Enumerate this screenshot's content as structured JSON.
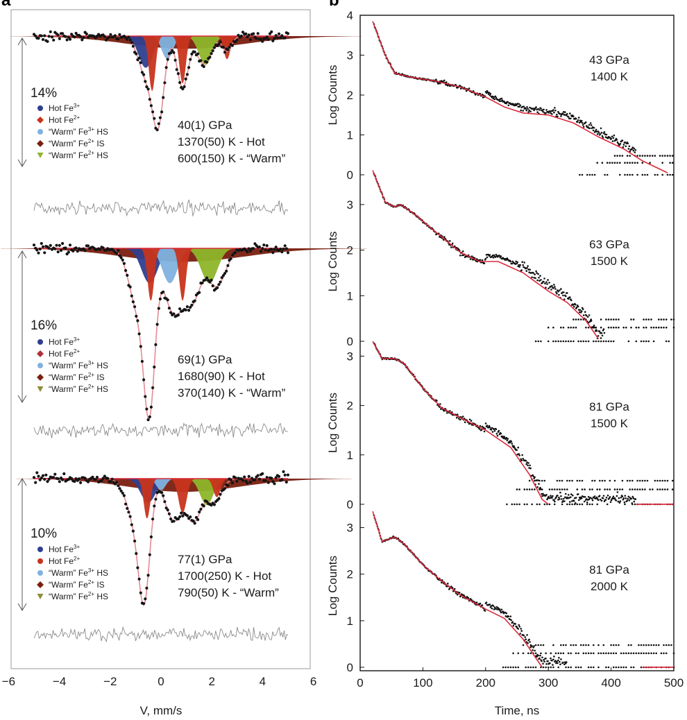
{
  "panel_a_label": "a",
  "panel_b_label": "b",
  "chart_data": [
    {
      "type": "scatter",
      "panel": "a",
      "xlabel": "V, mm/s",
      "xlim": [
        -6,
        6
      ],
      "xticks": [
        "-6",
        "-4",
        "-2",
        "0",
        "2",
        "4",
        "6"
      ],
      "spectra": [
        {
          "absorption_label": "14%",
          "conditions": [
            "40(1) GPa",
            "1370(50) K - Hot",
            "600(150) K - “Warm”"
          ],
          "legend": [
            {
              "label": "Hot Fe",
              "sup": "3+",
              "suffix": "",
              "color": "#2f3f8f",
              "marker": "circle"
            },
            {
              "label": "Hot Fe",
              "sup": "2+",
              "suffix": "",
              "color": "#c8341c",
              "marker": "diamond"
            },
            {
              "label": "“Warm” Fe",
              "sup": "3+",
              "suffix": " HS",
              "color": "#7fb2df",
              "marker": "circle"
            },
            {
              "label": "“Warm” Fe",
              "sup": "2+",
              "suffix": " IS",
              "color": "#7a1f10",
              "marker": "diamond"
            },
            {
              "label": "“Warm” Fe",
              "sup": "2+",
              "suffix": " HS",
              "color": "#8db52a",
              "marker": "triangle"
            }
          ],
          "components": [
            {
              "color": "#7a1f10",
              "center": 1.0,
              "width": 2.3,
              "depth": 0.22
            },
            {
              "color": "#2f3f8f",
              "center": -0.6,
              "width": 0.28,
              "depth": 0.55
            },
            {
              "color": "#7fb2df",
              "center": 0.25,
              "width": 0.22,
              "depth": 0.4
            },
            {
              "color": "#8db52a",
              "center": 1.75,
              "width": 0.26,
              "depth": 0.5
            },
            {
              "color": "#c8341c",
              "center": -0.35,
              "width": 0.13,
              "depth": 0.95
            },
            {
              "color": "#c8341c",
              "center": 0.85,
              "width": 0.13,
              "depth": 0.82
            },
            {
              "color": "#c8341c",
              "center": 2.6,
              "width": 0.13,
              "depth": 0.4
            }
          ],
          "fit_peaks": [
            {
              "center": -0.55,
              "width": 0.32,
              "depth": 0.32
            },
            {
              "center": -0.1,
              "width": 0.22,
              "depth": 0.6
            },
            {
              "center": 0.85,
              "width": 0.22,
              "depth": 0.4
            },
            {
              "center": 1.7,
              "width": 0.28,
              "depth": 0.22
            },
            {
              "center": 2.6,
              "width": 0.18,
              "depth": 0.12
            }
          ]
        },
        {
          "absorption_label": "16%",
          "conditions": [
            "69(1) GPa",
            "1680(90) K - Hot",
            "370(140) K - “Warm”"
          ],
          "legend": [
            {
              "label": "Hot Fe",
              "sup": "3+",
              "suffix": "",
              "color": "#2f3f8f",
              "marker": "circle"
            },
            {
              "label": "Hot Fe",
              "sup": "2+",
              "suffix": "",
              "color": "#b0303a",
              "marker": "diamond"
            },
            {
              "label": "“Warm” Fe",
              "sup": "3+",
              "suffix": " HS",
              "color": "#7fb2df",
              "marker": "circle"
            },
            {
              "label": "“Warm” Fe",
              "sup": "2+",
              "suffix": " IS",
              "color": "#7a1f10",
              "marker": "diamond"
            },
            {
              "label": "“Warm” Fe",
              "sup": "2+",
              "suffix": " HS",
              "color": "#8a8f3a",
              "marker": "triangle"
            }
          ],
          "components": [
            {
              "color": "#7a1f10",
              "center": 0.9,
              "width": 2.4,
              "depth": 0.2
            },
            {
              "color": "#2f3f8f",
              "center": -0.45,
              "width": 0.32,
              "depth": 0.52
            },
            {
              "color": "#7fb2df",
              "center": 0.35,
              "width": 0.3,
              "depth": 0.52
            },
            {
              "color": "#8db52a",
              "center": 1.9,
              "width": 0.32,
              "depth": 0.52
            },
            {
              "color": "#c8341c",
              "center": -0.4,
              "width": 0.13,
              "depth": 0.78
            },
            {
              "color": "#c8341c",
              "center": 0.85,
              "width": 0.13,
              "depth": 0.78
            }
          ],
          "fit_peaks": [
            {
              "center": -0.9,
              "width": 0.35,
              "depth": 0.4
            },
            {
              "center": -0.45,
              "width": 0.22,
              "depth": 0.95
            },
            {
              "center": 0.45,
              "width": 0.35,
              "depth": 0.4
            },
            {
              "center": 1.2,
              "width": 0.35,
              "depth": 0.35
            },
            {
              "center": 2.2,
              "width": 0.35,
              "depth": 0.25
            }
          ]
        },
        {
          "absorption_label": "10%",
          "conditions": [
            "77(1) GPa",
            "1700(250) K - Hot",
            "790(50) K - “Warm”"
          ],
          "legend": [
            {
              "label": "Hot Fe",
              "sup": "3+",
              "suffix": "",
              "color": "#2f3f8f",
              "marker": "circle"
            },
            {
              "label": "Hot Fe",
              "sup": "2+",
              "suffix": "",
              "color": "#c8341c",
              "marker": "circle"
            },
            {
              "label": "“Warm” Fe",
              "sup": "3+",
              "suffix": " HS",
              "color": "#7fb2df",
              "marker": "circle"
            },
            {
              "label": "“Warm” Fe",
              "sup": "2+",
              "suffix": " IS",
              "color": "#7a1f10",
              "marker": "diamond"
            },
            {
              "label": "“Warm” Fe",
              "sup": "2+",
              "suffix": " HS",
              "color": "#8a8f3a",
              "marker": "triangle"
            }
          ],
          "components": [
            {
              "color": "#7a1f10",
              "center": 0.9,
              "width": 2.2,
              "depth": 0.25
            },
            {
              "color": "#2f3f8f",
              "center": -0.5,
              "width": 0.3,
              "depth": 0.45
            },
            {
              "color": "#7fb2df",
              "center": 0.0,
              "width": 0.18,
              "depth": 0.22
            },
            {
              "color": "#8db52a",
              "center": 1.8,
              "width": 0.26,
              "depth": 0.5
            },
            {
              "color": "#c8341c",
              "center": -0.55,
              "width": 0.13,
              "depth": 0.75
            },
            {
              "color": "#c8341c",
              "center": 0.85,
              "width": 0.16,
              "depth": 0.65
            },
            {
              "color": "#c8341c",
              "center": 2.2,
              "width": 0.14,
              "depth": 0.35
            }
          ],
          "fit_peaks": [
            {
              "center": -1.0,
              "width": 0.35,
              "depth": 0.35
            },
            {
              "center": -0.65,
              "width": 0.22,
              "depth": 0.85
            },
            {
              "center": 0.5,
              "width": 0.32,
              "depth": 0.35
            },
            {
              "center": 1.3,
              "width": 0.3,
              "depth": 0.35
            },
            {
              "center": 2.1,
              "width": 0.28,
              "depth": 0.2
            }
          ]
        }
      ]
    },
    {
      "type": "scatter",
      "panel": "b",
      "xlabel": "Time, ns",
      "xlim": [
        0,
        500
      ],
      "xticks": [
        "0",
        "100",
        "200",
        "300",
        "400",
        "500"
      ],
      "series_color_fit": "#d9283a",
      "traces": [
        {
          "ylabel": "Log Counts",
          "ylim": [
            0,
            4
          ],
          "yticks": [
            "0",
            "1",
            "2",
            "3",
            "4"
          ],
          "conditions": [
            "43 GPa",
            "1400 K"
          ],
          "fit": [
            [
              20,
              3.85
            ],
            [
              40,
              3.0
            ],
            [
              55,
              2.55
            ],
            [
              80,
              2.45
            ],
            [
              120,
              2.35
            ],
            [
              160,
              2.2
            ],
            [
              200,
              1.95
            ],
            [
              230,
              1.7
            ],
            [
              260,
              1.55
            ],
            [
              300,
              1.5
            ],
            [
              340,
              1.3
            ],
            [
              380,
              0.95
            ],
            [
              420,
              0.65
            ],
            [
              450,
              0.35
            ],
            [
              470,
              0.2
            ],
            [
              490,
              0.05
            ]
          ],
          "data_end": 440,
          "noise_floor_start": 350
        },
        {
          "ylabel": "Log Counts",
          "ylim": [
            0,
            3.5
          ],
          "yticks": [
            "0",
            "1",
            "2",
            "3"
          ],
          "conditions": [
            "63 GPa",
            "1500 K"
          ],
          "fit": [
            [
              20,
              3.75
            ],
            [
              40,
              3.05
            ],
            [
              55,
              2.95
            ],
            [
              65,
              3.0
            ],
            [
              90,
              2.75
            ],
            [
              120,
              2.4
            ],
            [
              160,
              1.95
            ],
            [
              190,
              1.75
            ],
            [
              220,
              1.75
            ],
            [
              260,
              1.5
            ],
            [
              300,
              1.1
            ],
            [
              330,
              0.85
            ],
            [
              360,
              0.45
            ],
            [
              380,
              0.05
            ]
          ],
          "data_end": 390,
          "noise_floor_start": 280
        },
        {
          "ylabel": "Log Counts",
          "ylim": [
            0,
            3.3
          ],
          "yticks": [
            "0",
            "1",
            "2",
            "3"
          ],
          "conditions": [
            "81 GPa",
            "1500 K"
          ],
          "fit": [
            [
              20,
              3.3
            ],
            [
              35,
              2.95
            ],
            [
              55,
              2.95
            ],
            [
              70,
              2.85
            ],
            [
              100,
              2.35
            ],
            [
              130,
              1.95
            ],
            [
              160,
              1.75
            ],
            [
              200,
              1.5
            ],
            [
              240,
              1.15
            ],
            [
              270,
              0.6
            ],
            [
              290,
              0.1
            ],
            [
              300,
              0.0
            ]
          ],
          "data_end": 440,
          "noise_floor_start": 230,
          "tail": [
            [
              440,
              0.0
            ],
            [
              500,
              0.0
            ]
          ]
        },
        {
          "ylabel": "Log Counts",
          "ylim": [
            0,
            3.5
          ],
          "yticks": [
            "0",
            "1",
            "2",
            "3"
          ],
          "conditions": [
            "81 GPa",
            "2000 K"
          ],
          "fit": [
            [
              20,
              3.35
            ],
            [
              35,
              2.7
            ],
            [
              55,
              2.8
            ],
            [
              70,
              2.65
            ],
            [
              100,
              2.2
            ],
            [
              130,
              1.85
            ],
            [
              160,
              1.55
            ],
            [
              200,
              1.25
            ],
            [
              230,
              1.05
            ],
            [
              260,
              0.6
            ],
            [
              290,
              0.0
            ]
          ],
          "data_end": 330,
          "noise_floor_start": 220,
          "tail": [
            [
              450,
              0.0
            ],
            [
              500,
              0.0
            ]
          ]
        }
      ]
    }
  ]
}
